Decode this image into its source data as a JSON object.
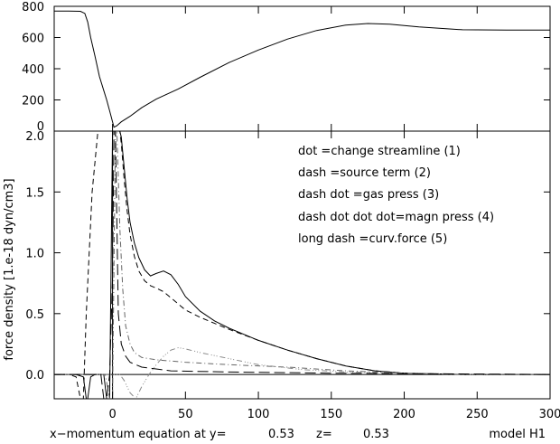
{
  "chart_data": {
    "type": "line",
    "x_range": [
      -40,
      300
    ],
    "x_ticks": [
      0,
      50,
      100,
      150,
      200,
      250,
      300
    ],
    "panels": [
      {
        "name": "top",
        "ylim": [
          0,
          800
        ],
        "y_ticks": [
          0,
          200,
          400,
          600,
          800
        ],
        "series": [
          {
            "style": "solid",
            "points": [
              [
                -40,
                770
              ],
              [
                -30,
                770
              ],
              [
                -22,
                768
              ],
              [
                -19,
                755
              ],
              [
                -17,
                700
              ],
              [
                -15,
                600
              ],
              [
                -12,
                480
              ],
              [
                -9,
                350
              ],
              [
                -6,
                260
              ],
              [
                -4,
                200
              ],
              [
                -2,
                130
              ],
              [
                0,
                60
              ],
              [
                1,
                25
              ],
              [
                3,
                35
              ],
              [
                6,
                60
              ],
              [
                12,
                95
              ],
              [
                20,
                150
              ],
              [
                30,
                205
              ],
              [
                45,
                270
              ],
              [
                60,
                345
              ],
              [
                80,
                440
              ],
              [
                100,
                520
              ],
              [
                120,
                590
              ],
              [
                140,
                645
              ],
              [
                160,
                680
              ],
              [
                175,
                690
              ],
              [
                190,
                685
              ],
              [
                210,
                668
              ],
              [
                240,
                650
              ],
              [
                270,
                648
              ],
              [
                300,
                648
              ]
            ]
          }
        ]
      },
      {
        "name": "bottom",
        "ylim": [
          -0.2,
          2.0
        ],
        "y_ticks": [
          0.0,
          0.5,
          1.0,
          1.5,
          2.0
        ],
        "y_tick_labels": [
          "0.0",
          "0.5",
          "1.0",
          "1.5",
          "2.0"
        ],
        "ylabel": "force density [1.e-18 dyn/cm3]",
        "series": [
          {
            "name": "solid",
            "style": "solid",
            "points": [
              [
                -40,
                0
              ],
              [
                -25,
                0
              ],
              [
                -20,
                -0.02
              ],
              [
                -18,
                -0.2
              ],
              [
                -17,
                -0.2
              ],
              [
                -15,
                -0.02
              ],
              [
                -12,
                0
              ],
              [
                -6,
                0
              ],
              [
                -4,
                -0.2
              ],
              [
                -2,
                -0.2
              ],
              [
                0,
                2.0
              ],
              [
                1,
                2.0
              ],
              [
                3,
                2.0
              ],
              [
                5,
                2.0
              ],
              [
                6,
                1.95
              ],
              [
                8,
                1.7
              ],
              [
                10,
                1.45
              ],
              [
                12,
                1.25
              ],
              [
                15,
                1.08
              ],
              [
                18,
                0.96
              ],
              [
                22,
                0.86
              ],
              [
                26,
                0.81
              ],
              [
                30,
                0.83
              ],
              [
                35,
                0.85
              ],
              [
                40,
                0.82
              ],
              [
                45,
                0.74
              ],
              [
                50,
                0.64
              ],
              [
                60,
                0.52
              ],
              [
                70,
                0.44
              ],
              [
                80,
                0.38
              ],
              [
                100,
                0.28
              ],
              [
                120,
                0.2
              ],
              [
                140,
                0.13
              ],
              [
                160,
                0.07
              ],
              [
                180,
                0.03
              ],
              [
                200,
                0.01
              ],
              [
                240,
                0
              ],
              [
                300,
                0
              ]
            ]
          },
          {
            "name": "dash",
            "style": "dash",
            "points": [
              [
                -40,
                0
              ],
              [
                -30,
                0
              ],
              [
                -25,
                -0.02
              ],
              [
                -22,
                -0.2
              ],
              [
                -20,
                -0.2
              ],
              [
                -18,
                0.5
              ],
              [
                -14,
                1.5
              ],
              [
                -10,
                2.0
              ],
              [
                0,
                2.0
              ],
              [
                3,
                2.0
              ],
              [
                5,
                2.0
              ],
              [
                6,
                1.9
              ],
              [
                8,
                1.6
              ],
              [
                10,
                1.35
              ],
              [
                12,
                1.15
              ],
              [
                15,
                0.97
              ],
              [
                18,
                0.85
              ],
              [
                22,
                0.77
              ],
              [
                26,
                0.73
              ],
              [
                30,
                0.71
              ],
              [
                35,
                0.68
              ],
              [
                40,
                0.63
              ],
              [
                45,
                0.58
              ],
              [
                50,
                0.53
              ],
              [
                60,
                0.47
              ],
              [
                70,
                0.42
              ],
              [
                80,
                0.37
              ],
              [
                100,
                0.28
              ],
              [
                120,
                0.2
              ],
              [
                140,
                0.13
              ],
              [
                160,
                0.07
              ],
              [
                180,
                0.03
              ],
              [
                200,
                0.01
              ],
              [
                240,
                0
              ],
              [
                300,
                0
              ]
            ]
          },
          {
            "name": "dash-dot",
            "style": "dash-dot",
            "color": "#666666",
            "points": [
              [
                -40,
                0
              ],
              [
                -5,
                0
              ],
              [
                -2,
                -0.2
              ],
              [
                0,
                -0.2
              ],
              [
                2,
                2.0
              ],
              [
                3,
                2.0
              ],
              [
                5,
                1.2
              ],
              [
                7,
                0.7
              ],
              [
                9,
                0.4
              ],
              [
                12,
                0.25
              ],
              [
                15,
                0.18
              ],
              [
                20,
                0.14
              ],
              [
                30,
                0.12
              ],
              [
                50,
                0.1
              ],
              [
                80,
                0.08
              ],
              [
                120,
                0.06
              ],
              [
                160,
                0.03
              ],
              [
                200,
                0.01
              ],
              [
                240,
                0
              ],
              [
                300,
                0
              ]
            ]
          },
          {
            "name": "dash-dot-dot-dot",
            "style": "dash-dot-dot-dot",
            "color": "#888888",
            "points": [
              [
                -40,
                0
              ],
              [
                5,
                0
              ],
              [
                8,
                -0.05
              ],
              [
                12,
                -0.15
              ],
              [
                16,
                -0.2
              ],
              [
                20,
                -0.1
              ],
              [
                25,
                0
              ],
              [
                30,
                0.08
              ],
              [
                35,
                0.15
              ],
              [
                40,
                0.2
              ],
              [
                45,
                0.22
              ],
              [
                50,
                0.21
              ],
              [
                60,
                0.18
              ],
              [
                80,
                0.13
              ],
              [
                100,
                0.08
              ],
              [
                130,
                0.04
              ],
              [
                160,
                0.02
              ],
              [
                200,
                0.01
              ],
              [
                250,
                0
              ],
              [
                300,
                0
              ]
            ]
          },
          {
            "name": "long-dash",
            "style": "long-dash",
            "points": [
              [
                -40,
                0
              ],
              [
                -8,
                0
              ],
              [
                -6,
                -0.2
              ],
              [
                -4,
                -0.2
              ],
              [
                -2,
                0
              ],
              [
                0,
                0.8
              ],
              [
                1,
                2.0
              ],
              [
                2,
                2.0
              ],
              [
                4,
                0.5
              ],
              [
                6,
                0.25
              ],
              [
                9,
                0.15
              ],
              [
                12,
                0.1
              ],
              [
                20,
                0.06
              ],
              [
                40,
                0.03
              ],
              [
                80,
                0.02
              ],
              [
                150,
                0.01
              ],
              [
                300,
                0
              ]
            ]
          }
        ]
      }
    ],
    "legend": [
      "dot =change streamline (1)",
      "dash =source term (2)",
      "dash dot =gas press (3)",
      "dash dot dot dot=magn press (4)",
      "long dash =curv.force (5)"
    ],
    "caption": {
      "left": "x−momentum equation at y=",
      "y_value": "0.53",
      "z_label": "z=",
      "z_value": "0.53",
      "model": "model H1"
    }
  }
}
